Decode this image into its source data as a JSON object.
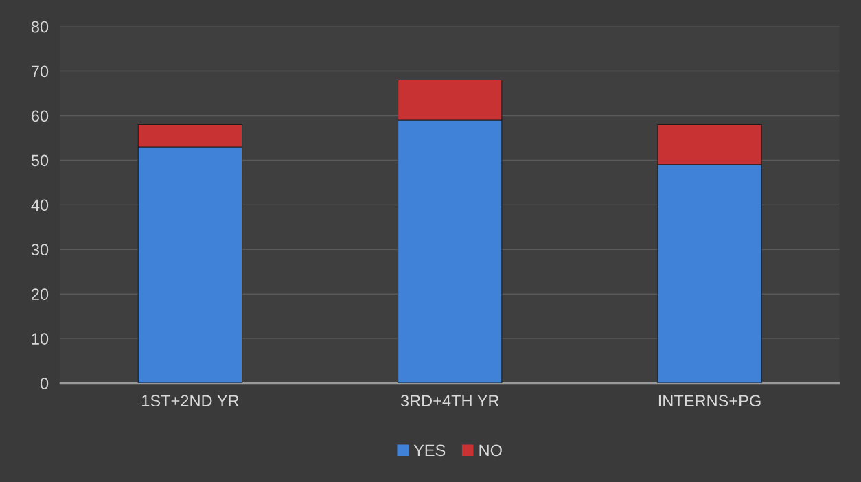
{
  "chart_data": {
    "type": "bar",
    "stacked": true,
    "categories": [
      "1ST+2ND YR",
      "3RD+4TH YR",
      "INTERNS+PG"
    ],
    "series": [
      {
        "name": "YES",
        "color": "#3f82d8",
        "values": [
          53,
          59,
          49
        ]
      },
      {
        "name": "NO",
        "color": "#c83232",
        "values": [
          5,
          9,
          9
        ]
      }
    ],
    "ylim": [
      0,
      80
    ],
    "yticks": [
      0,
      10,
      20,
      30,
      40,
      50,
      60,
      70,
      80
    ],
    "grid": "y",
    "legend": "bottom"
  }
}
